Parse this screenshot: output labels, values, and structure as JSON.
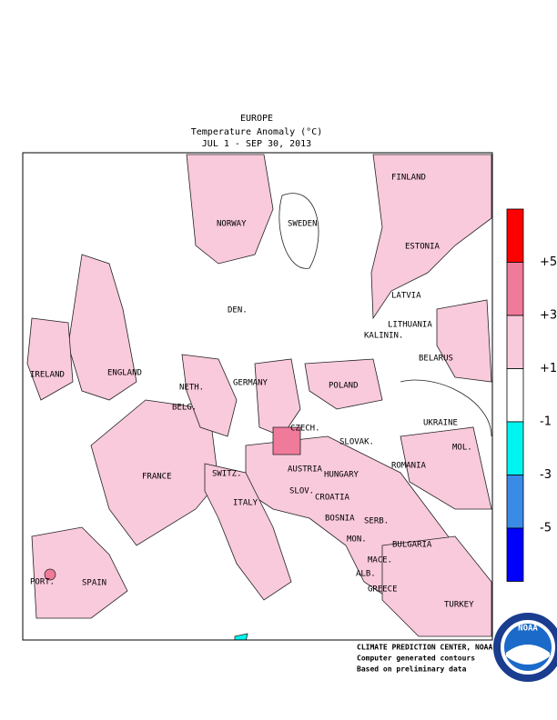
{
  "title": {
    "region": "EUROPE",
    "variable": "Temperature Anomaly (°C)",
    "period": "JUL  1 - SEP 30, 2013"
  },
  "map": {
    "labels": [
      "FINLAND",
      "NORWAY",
      "SWEDEN",
      "ESTONIA",
      "LATVIA",
      "DEN.",
      "LITHUANIA",
      "KALININ.",
      "IRELAND",
      "ENGLAND",
      "BELARUS",
      "NETH.",
      "GERMANY",
      "POLAND",
      "BELG.",
      "UKRAINE",
      "CZECH.",
      "SLOVAK.",
      "FRANCE",
      "SWITZ.",
      "AUSTRIA",
      "HUNGARY",
      "MOL.",
      "ROMANIA",
      "SLOV.",
      "CROATIA",
      "ITALY",
      "BOSNIA",
      "SERB.",
      "BULGARIA",
      "MON.",
      "MACE.",
      "PORT.",
      "SPAIN",
      "ALB.",
      "GREECE",
      "TURKEY"
    ]
  },
  "legend": {
    "colors": [
      "#ff0000",
      "#f07a9a",
      "#f9c9dc",
      "#ffffff",
      "#00f5f0",
      "#3a8be6",
      "#0000ff"
    ],
    "labels": [
      "+5",
      "+3",
      "+1",
      "-1",
      "-3",
      "-5"
    ]
  },
  "credits": {
    "lines": [
      "CLIMATE PREDICTION CENTER, NOAA",
      "Computer generated contours",
      "Based on preliminary data"
    ],
    "logo": "NOAA"
  }
}
